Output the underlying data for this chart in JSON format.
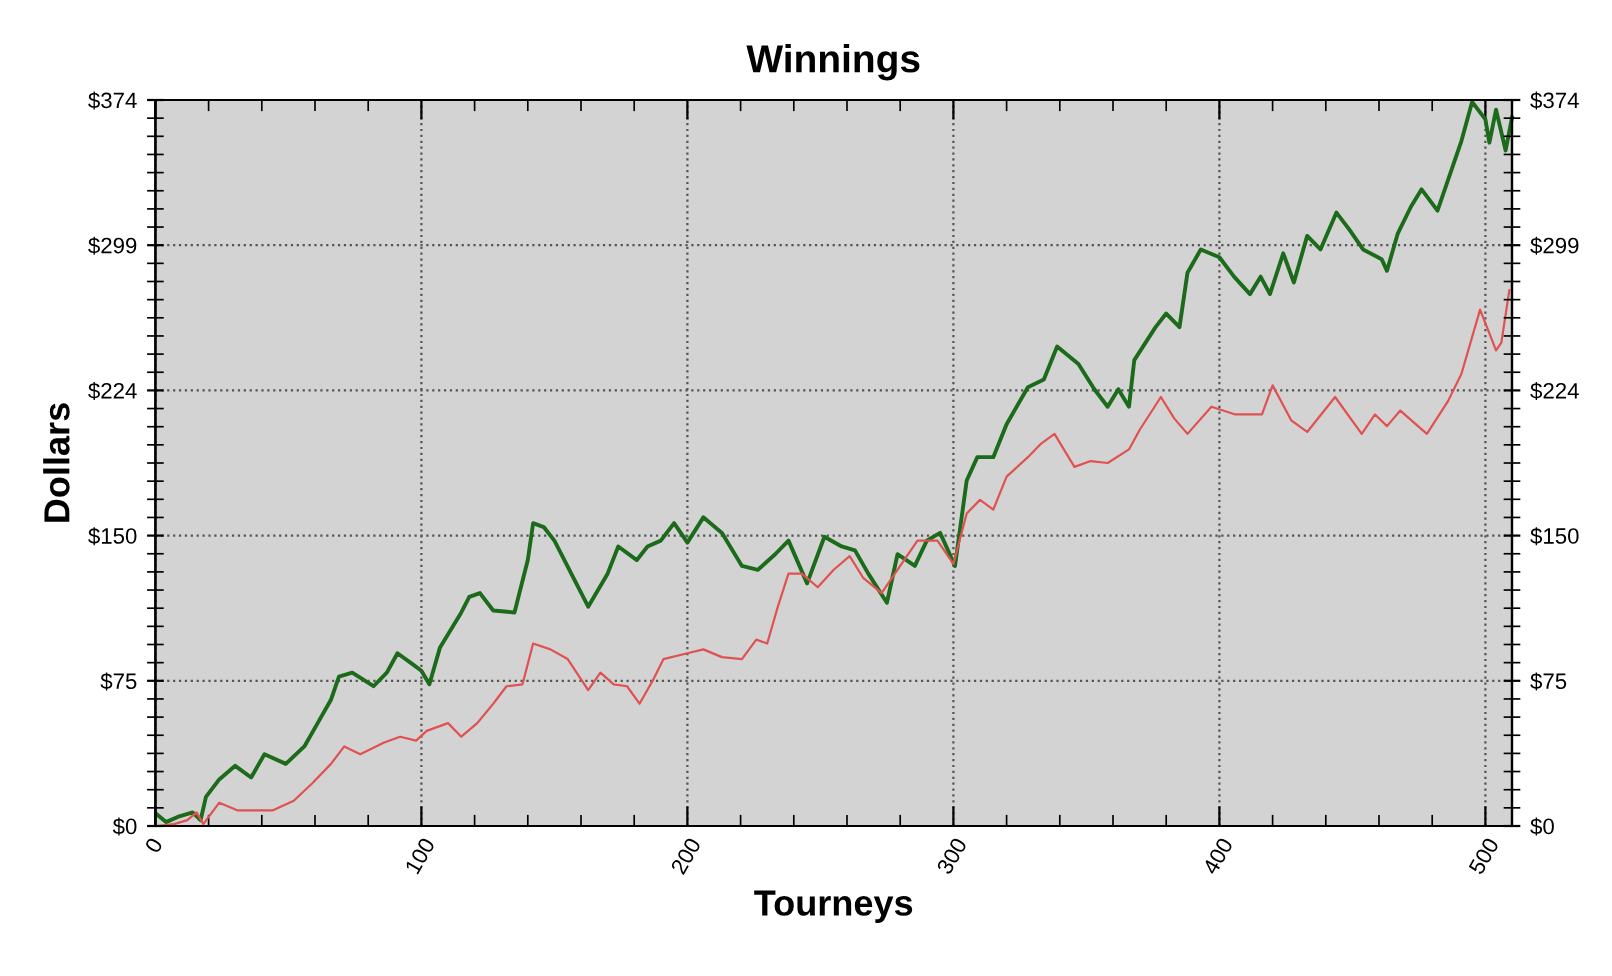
{
  "chart_data": {
    "type": "line",
    "title": "Winnings",
    "xlabel": "Tourneys",
    "ylabel": "Dollars",
    "xlim": [
      0,
      510
    ],
    "xticks": [
      0,
      100,
      200,
      300,
      400,
      500
    ],
    "ylim": [
      0,
      374
    ],
    "yticks": [
      {
        "value": 0,
        "label": "$0"
      },
      {
        "value": 74.8,
        "label": "$75"
      },
      {
        "value": 149.6,
        "label": "$150"
      },
      {
        "value": 224.4,
        "label": "$224"
      },
      {
        "value": 299.2,
        "label": "$299"
      },
      {
        "value": 374,
        "label": "$374"
      }
    ],
    "y2lim": [
      0,
      374
    ],
    "y2ticks": [
      {
        "value": 0,
        "label": "$0"
      },
      {
        "value": 74.8,
        "label": "$75"
      },
      {
        "value": 149.6,
        "label": "$150"
      },
      {
        "value": 224.4,
        "label": "$224"
      },
      {
        "value": 299.2,
        "label": "$299"
      },
      {
        "value": 374,
        "label": "$374"
      }
    ],
    "grid": true,
    "legend": false,
    "series": [
      {
        "color": "#1b6b1b",
        "x": [
          0.5,
          4,
          9,
          14,
          17,
          19,
          24,
          30,
          36,
          41,
          49,
          56,
          61,
          66,
          69,
          74,
          82,
          87,
          91,
          96,
          100,
          103,
          107,
          115,
          118,
          122,
          127,
          135,
          140,
          142,
          146,
          150,
          162.7,
          170,
          174,
          181,
          185,
          190,
          195,
          200,
          206,
          213,
          220.5,
          226.5,
          233,
          238,
          245,
          251.5,
          258,
          263,
          268,
          275,
          279,
          285.5,
          290,
          295,
          300.6,
          305,
          309,
          315,
          320,
          328,
          334,
          339,
          347,
          353,
          358,
          362,
          366,
          368,
          376,
          380,
          385,
          388,
          393,
          400,
          405.5,
          411.5,
          415.5,
          419,
          424,
          428,
          433,
          438,
          444,
          449,
          454,
          461,
          463,
          467,
          472,
          476,
          482,
          486,
          491,
          495,
          500,
          501.5,
          504,
          507.6,
          510
        ],
        "values": [
          6,
          2,
          5,
          7,
          3,
          15,
          24,
          31,
          25,
          37,
          32,
          41,
          53,
          65,
          77,
          79,
          72,
          79,
          89,
          84,
          80,
          73,
          92,
          110,
          118,
          120,
          111,
          110,
          137,
          156,
          154,
          147,
          113,
          130,
          144,
          137,
          144,
          147,
          156,
          146,
          159,
          151,
          134,
          132,
          140,
          147,
          125,
          149,
          144,
          142,
          130,
          115,
          140,
          134,
          147,
          151,
          134,
          178,
          190,
          190,
          207,
          226,
          230,
          247,
          238,
          225,
          216,
          225,
          216,
          240,
          257,
          264,
          257,
          285,
          297,
          293,
          283,
          274,
          283,
          274,
          295,
          280,
          304,
          297,
          316,
          307,
          297,
          292,
          286,
          305,
          319,
          328,
          317,
          333,
          353,
          373,
          364,
          352,
          369,
          348,
          365
        ]
      },
      {
        "color": "#e05252",
        "x": [
          0.5,
          7,
          12,
          15.5,
          18,
          24,
          31,
          37,
          44,
          52,
          59,
          66,
          71,
          77,
          86,
          92,
          98,
          102,
          110,
          115,
          121,
          127,
          132,
          138,
          142,
          148.5,
          155,
          162.7,
          167.3,
          172.3,
          177.3,
          182,
          187,
          191,
          200,
          206,
          213,
          220.5,
          225.9,
          230,
          234,
          238,
          243,
          249,
          255,
          261,
          266,
          273,
          278,
          286.5,
          294,
          300,
          305,
          310,
          315,
          320,
          328,
          333,
          338,
          345.5,
          351.6,
          358,
          366,
          370,
          378,
          383,
          388,
          397,
          406,
          416,
          420,
          427,
          433,
          443.5,
          453.5,
          458.5,
          463,
          468,
          478,
          486,
          491,
          498,
          504,
          506,
          509
        ],
        "values": [
          0,
          1,
          3,
          7,
          1,
          12,
          8,
          8,
          8,
          13,
          22,
          32,
          41,
          37,
          43,
          46,
          44,
          49,
          53,
          46,
          53,
          63,
          72,
          73,
          94,
          91,
          86,
          70,
          79,
          73,
          72,
          63,
          75,
          86,
          89,
          91,
          87,
          86,
          96,
          94,
          113,
          130,
          130,
          123,
          132,
          139,
          128,
          120,
          130,
          147,
          147,
          135,
          161,
          168,
          163,
          180,
          190,
          197,
          202,
          185,
          188,
          187,
          194,
          204,
          221,
          210,
          202,
          216,
          212,
          212,
          227,
          209,
          203,
          221,
          202,
          212,
          206,
          214,
          202,
          219,
          233,
          266,
          245,
          249,
          276
        ]
      }
    ]
  }
}
